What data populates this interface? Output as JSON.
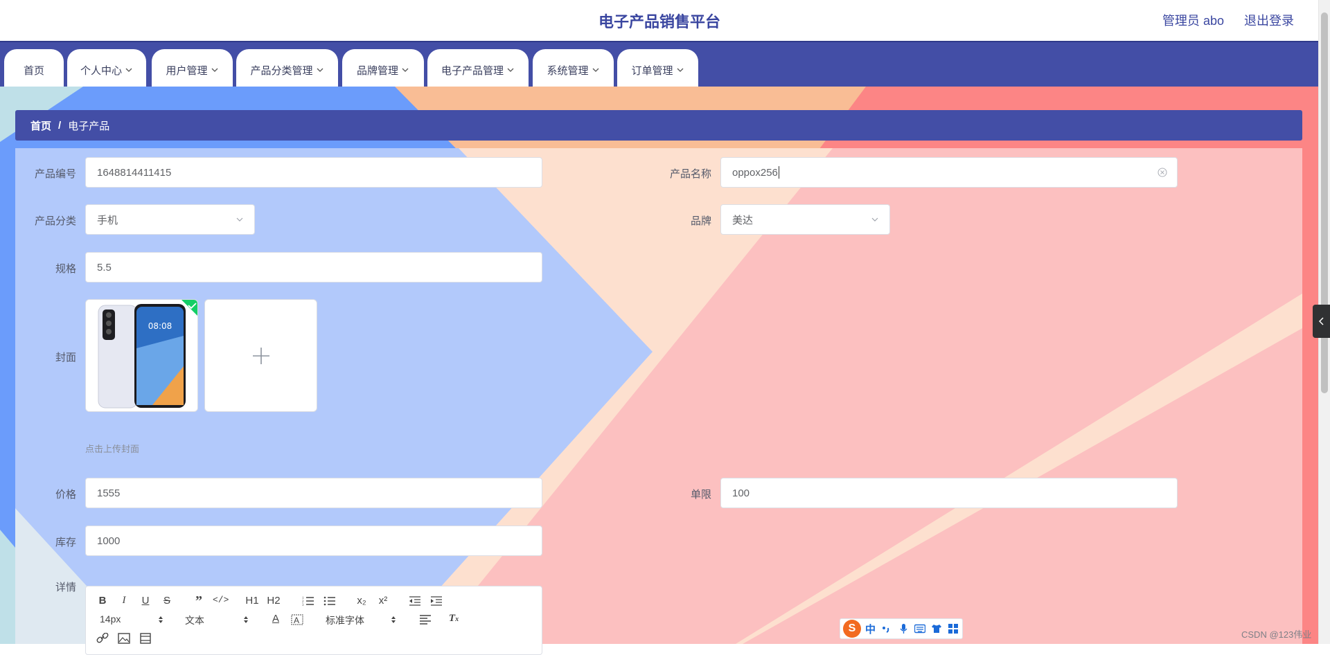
{
  "header": {
    "title": "电子产品销售平台",
    "role_user": "管理员 abo",
    "logout": "退出登录"
  },
  "nav": [
    {
      "label": "首页"
    },
    {
      "label": "个人中心"
    },
    {
      "label": "用户管理"
    },
    {
      "label": "产品分类管理"
    },
    {
      "label": "品牌管理"
    },
    {
      "label": "电子产品管理"
    },
    {
      "label": "系统管理"
    },
    {
      "label": "订单管理"
    }
  ],
  "breadcrumb": {
    "home": "首页",
    "separator": "/",
    "current": "电子产品"
  },
  "form": {
    "code_label": "产品编号",
    "code_value": "1648814411415",
    "name_label": "产品名称",
    "name_value": "oppox256",
    "category_label": "产品分类",
    "category_value": "手机",
    "brand_label": "品牌",
    "brand_value": "美达",
    "spec_label": "规格",
    "spec_value": "5.5",
    "cover_label": "封面",
    "cover_tip": "点击上传封面",
    "price_label": "价格",
    "price_value": "1555",
    "limit_label": "单限",
    "limit_value": "100",
    "stock_label": "库存",
    "stock_value": "1000",
    "detail_label": "详情"
  },
  "editor": {
    "font_size": "14px",
    "header_type": "文本",
    "font_family": "标准字体",
    "h1": "H1",
    "h2": "H2",
    "sub": "x₂",
    "sup": "x²"
  },
  "ime": {
    "logo": "S",
    "lang": "中"
  },
  "watermark": "CSDN @123伟业",
  "colors": {
    "primary": "#434ea6",
    "title": "#3a46a0",
    "upload_ok": "#13ce66"
  }
}
